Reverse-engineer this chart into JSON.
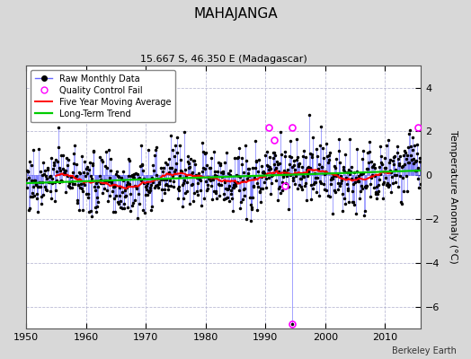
{
  "title": "MAHAJANGA",
  "subtitle": "15.667 S, 46.350 E (Madagascar)",
  "ylabel": "Temperature Anomaly (°C)",
  "credit": "Berkeley Earth",
  "xlim": [
    1950,
    2016
  ],
  "ylim": [
    -7,
    5
  ],
  "yticks": [
    -6,
    -4,
    -2,
    0,
    2,
    4
  ],
  "xticks": [
    1950,
    1960,
    1970,
    1980,
    1990,
    2000,
    2010
  ],
  "fig_bg_color": "#d8d8d8",
  "plot_bg_color": "#ffffff",
  "grid_color": "#aaaacc",
  "stem_color": "#6666ff",
  "marker_color": "#000000",
  "ma_color": "#ff0000",
  "trend_color": "#00cc00",
  "qc_color": "#ff00ff",
  "qc_years": [
    1990.5,
    1991.5,
    1993.25,
    1994.5,
    2015.5
  ],
  "qc_vals": [
    2.2,
    1.6,
    -0.5,
    2.2,
    2.2
  ],
  "outlier_year": 1994.5,
  "outlier_val": -6.8
}
